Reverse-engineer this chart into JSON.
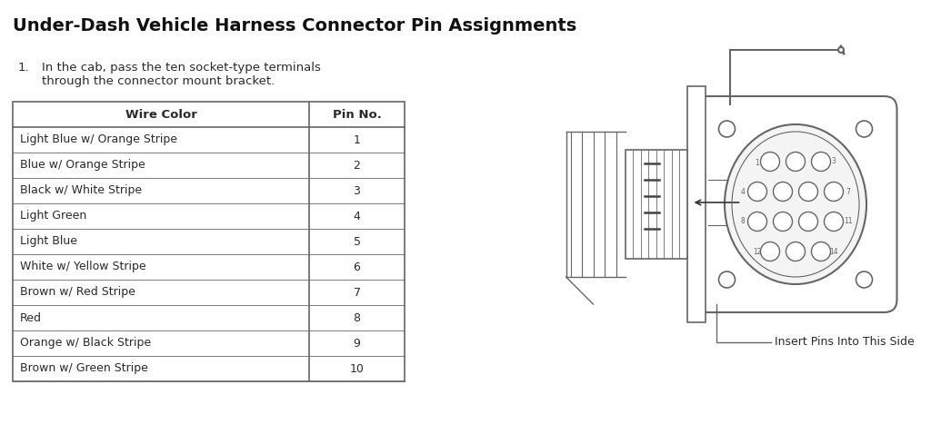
{
  "title": "Under-Dash Vehicle Harness Connector Pin Assignments",
  "instruction_num": "1.",
  "instruction_text": "In the cab, pass the ten socket-type terminals\nthrough the connector mount bracket.",
  "table_headers": [
    "Wire Color",
    "Pin No."
  ],
  "table_rows": [
    [
      "Light Blue w/ Orange Stripe",
      "1"
    ],
    [
      "Blue w/ Orange Stripe",
      "2"
    ],
    [
      "Black w/ White Stripe",
      "3"
    ],
    [
      "Light Green",
      "4"
    ],
    [
      "Light Blue",
      "5"
    ],
    [
      "White w/ Yellow Stripe",
      "6"
    ],
    [
      "Brown w/ Red Stripe",
      "7"
    ],
    [
      "Red",
      "8"
    ],
    [
      "Orange w/ Black Stripe",
      "9"
    ],
    [
      "Brown w/ Green Stripe",
      "10"
    ]
  ],
  "connector_label": "Insert Pins Into This Side",
  "bg_color": "#ffffff",
  "text_color": "#2a2a2a",
  "line_color": "#666666",
  "title_fontsize": 14,
  "body_fontsize": 9.5
}
